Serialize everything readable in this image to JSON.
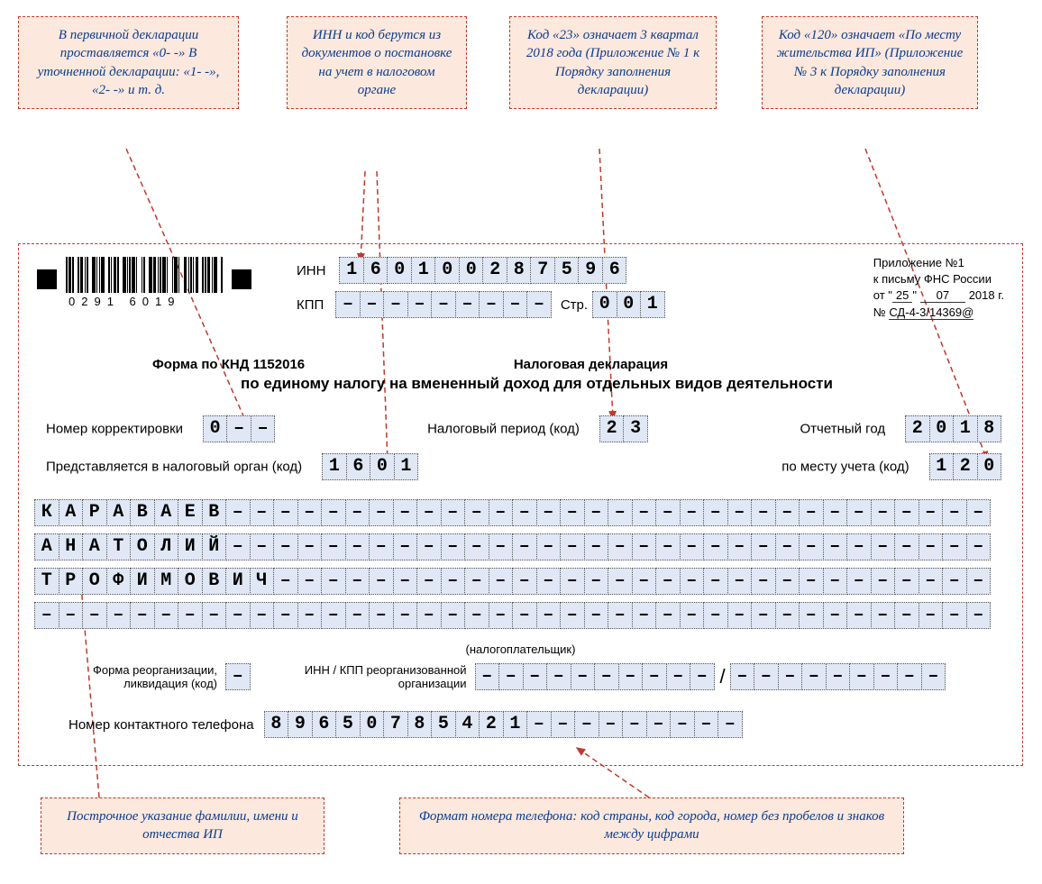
{
  "callouts": {
    "c1": "В первичной декларации проставляется «0- -»\nВ уточненной декларации: «1- -», «2- -» и т. д.",
    "c2": "ИНН и код берутся из документов о постановке на учет в налоговом органе",
    "c3": "Код «23» означает 3 квартал 2018 года (Приложение № 1 к Порядку заполнения декларации)",
    "c4": "Код «120» означает «По месту жительства ИП» (Приложение № 3 к Порядку заполнения декларации)",
    "c5": "Построчное указание фамилии, имени и отчества ИП",
    "c6": "Формат номера телефона: код страны, код города, номер без пробелов и знаков между цифрами"
  },
  "labels": {
    "inn": "ИНН",
    "kpp": "КПП",
    "page": "Стр.",
    "formknd": "Форма по КНД 1152016",
    "title1": "Налоговая декларация",
    "title2": "по единому налогу на вмененный доход для отдельных видов деятельности",
    "corrnum": "Номер корректировки",
    "taxperiod": "Налоговый период (код)",
    "year": "Отчетный год",
    "presented": "Представляется в налоговый орган (код)",
    "place": "по месту учета (код)",
    "taxpayer": "(налогоплательщик)",
    "reorg": "Форма реорганизации, ликвидация (код)",
    "innkpp_reorg": "ИНН / КПП реорганизованной организации",
    "phone": "Номер контактного телефона"
  },
  "appendix": {
    "l1": "Приложение №1",
    "l2": "к письму ФНС России",
    "d": "25",
    "m": "07",
    "y": "2018",
    "num_prefix": "№ ",
    "num": "СД-4-3/14369@"
  },
  "barcode_num": "0291  6019",
  "styling": {
    "callout_bg": "#fce8dd",
    "callout_border": "#c0392b",
    "callout_text": "#0a3d8f",
    "cell_bg": "#e0e7f5",
    "cell_border": "#555555",
    "connector_color": "#c0392b",
    "font": "Arial",
    "callout_font": "Times New Roman italic"
  },
  "fields": {
    "inn": [
      "1",
      "6",
      "0",
      "1",
      "0",
      "0",
      "2",
      "8",
      "7",
      "5",
      "9",
      "6"
    ],
    "kpp_dashes": 9,
    "page_num": [
      "0",
      "0",
      "1"
    ],
    "corr": [
      "0",
      "-",
      "-"
    ],
    "period": [
      "2",
      "3"
    ],
    "year_v": [
      "2",
      "0",
      "1",
      "8"
    ],
    "organ": [
      "1",
      "6",
      "0",
      "1"
    ],
    "place_v": [
      "1",
      "2",
      "0"
    ],
    "line1": "КАРАВАЕВ",
    "line2": "АНАТОЛИЙ",
    "line3": "ТРОФИМОВИЧ",
    "name_len": 40,
    "reorg_dashes": 1,
    "reorg_inn_dashes": 10,
    "reorg_kpp_dashes": 9,
    "phone_v": "89650785421",
    "phone_len": 20
  }
}
